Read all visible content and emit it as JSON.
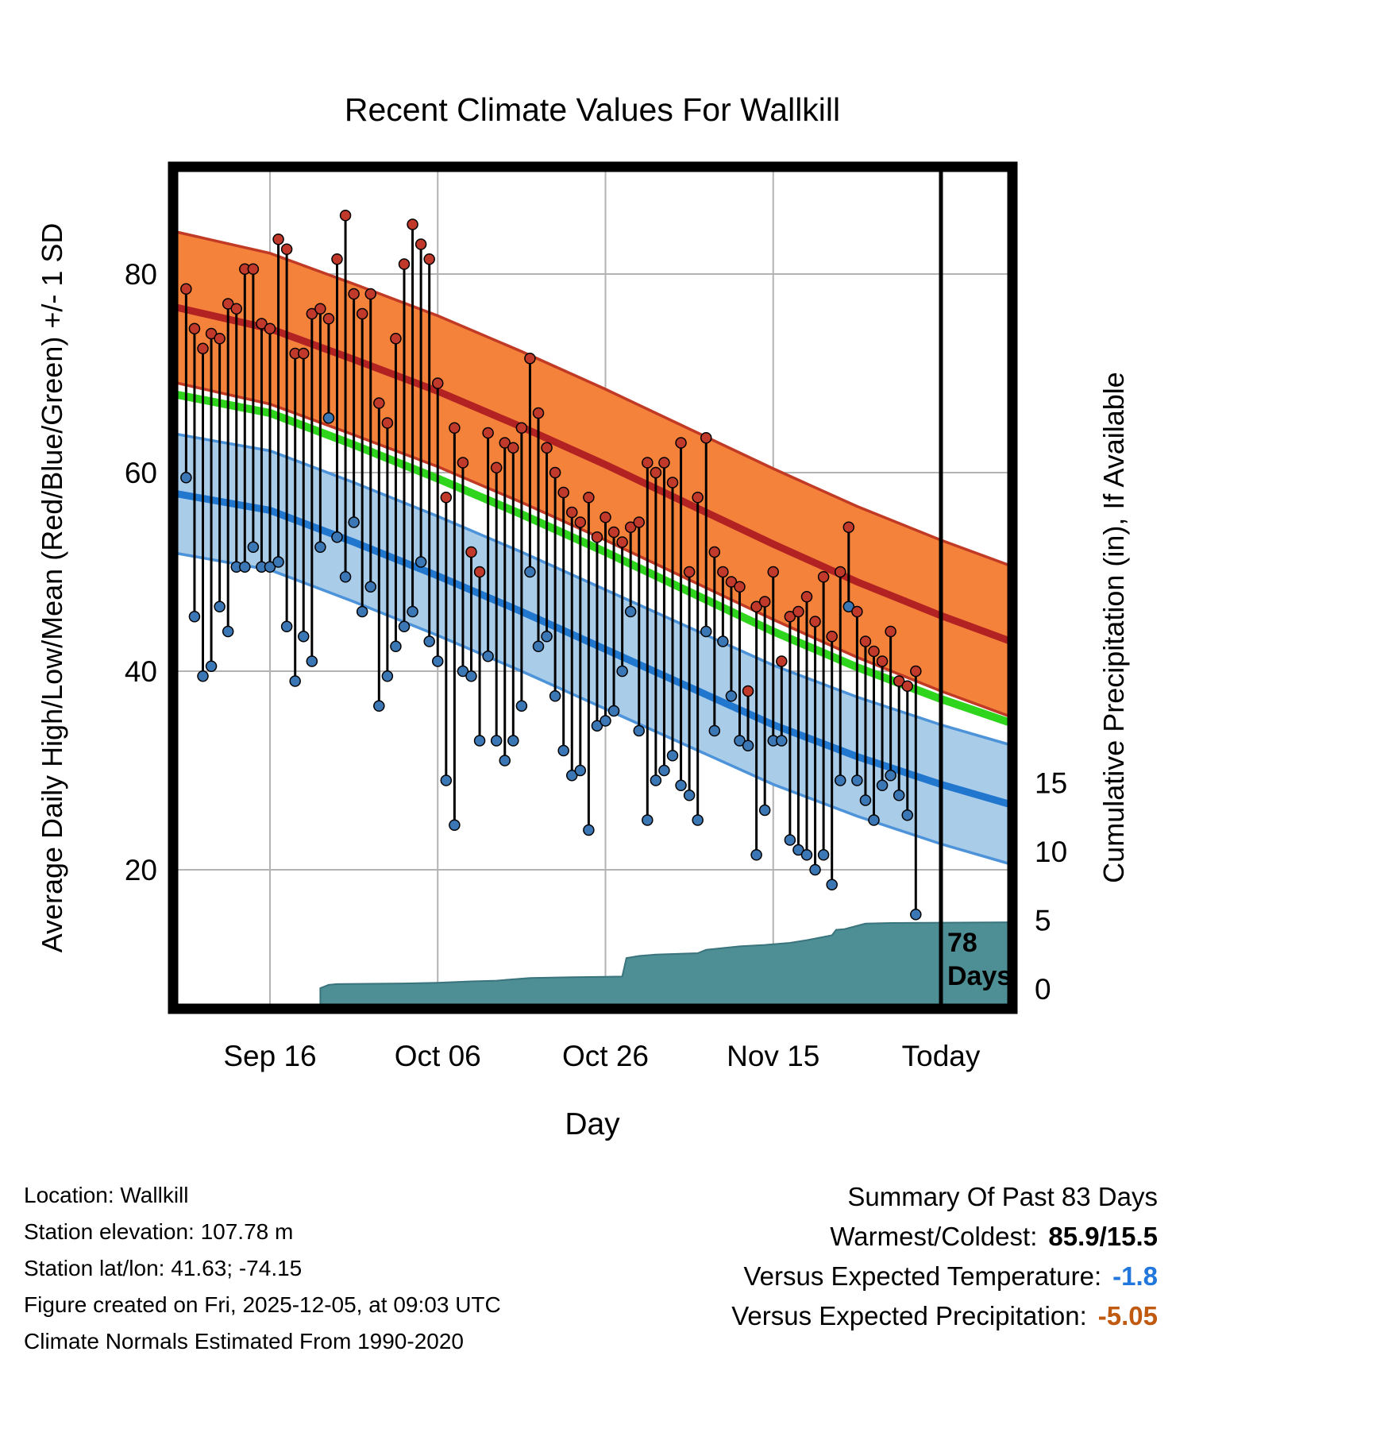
{
  "footer": {
    "location": "Location: Wallkill",
    "elevation": "Station elevation: 107.78 m",
    "latlon": "Station lat/lon: 41.63; -74.15",
    "created": "Figure created on Fri, 2025-12-05, at 09:03 UTC",
    "normals_note": "Climate Normals Estimated From 1990-2020"
  },
  "summary": {
    "title": "Summary Of Past 83 Days",
    "warmest_label": "Warmest/Coldest:",
    "warmest_value": "85.9/15.5",
    "warmest_color": "#000000",
    "vs_temp_label": "Versus Expected Temperature:",
    "vs_temp_value": "-1.8",
    "vs_temp_color": "#2277DD",
    "vs_precip_label": "Versus Expected Precipitation:",
    "vs_precip_value": "-5.05",
    "vs_precip_color": "#C05A11"
  },
  "chart_data": {
    "type": "line",
    "title": "Recent Climate Values For Wallkill",
    "xlabel": "Day",
    "ylabel_left": "Average Daily High/Low/Mean (Red/Blue/Green) +/- 1 SD",
    "ylabel_right": "Cumulative Precipitation (in), If Available",
    "x_ticks": [
      {
        "day": 3,
        "label": "Sep 16"
      },
      {
        "day": 23,
        "label": "Oct 06"
      },
      {
        "day": 43,
        "label": "Oct 26"
      },
      {
        "day": 63,
        "label": "Nov 15"
      },
      {
        "day": 83,
        "label": "Today"
      }
    ],
    "day_axis": {
      "range": [
        -8.5,
        91.5
      ]
    },
    "temp_axis": {
      "ticks": [
        20,
        40,
        60,
        80
      ],
      "range": [
        6,
        90.8
      ]
    },
    "precip_axis": {
      "ticks": [
        0,
        5,
        10,
        15
      ]
    },
    "normals": {
      "days": [
        -9,
        3,
        13,
        23,
        33,
        43,
        53,
        63,
        73,
        83,
        92
      ],
      "high_mean": [
        76.8,
        74.5,
        71.4,
        68.2,
        64.6,
        60.8,
        56.8,
        52.8,
        49.0,
        45.6,
        42.8
      ],
      "high_sd": 7.6,
      "low_mean": [
        58.0,
        56.2,
        53.0,
        49.6,
        46.0,
        42.2,
        38.4,
        34.6,
        31.4,
        28.6,
        26.4
      ],
      "low_sd": 6.0,
      "mean": [
        68.0,
        66.0,
        62.8,
        59.4,
        55.8,
        52.0,
        48.0,
        44.0,
        40.4,
        37.2,
        34.6
      ]
    },
    "daily": {
      "start_day": -7,
      "high": [
        78.5,
        74.5,
        72.5,
        74,
        73.5,
        77,
        76.5,
        80.5,
        80.5,
        75,
        74.5,
        83.5,
        82.5,
        72,
        72,
        76,
        76.5,
        75.5,
        81.5,
        85.9,
        78,
        76,
        78,
        67,
        65,
        73.5,
        81,
        85,
        83,
        81.5,
        69,
        57.5,
        64.5,
        61,
        52,
        50,
        64,
        60.5,
        63,
        62.5,
        64.5,
        71.5,
        66,
        62.5,
        60,
        58,
        56,
        55,
        57.5,
        53.5,
        55.5,
        54,
        53,
        54.5,
        55,
        61,
        60,
        61,
        59,
        63,
        50,
        57.5,
        63.5,
        52,
        50,
        49,
        48.5,
        38,
        46.5,
        47,
        50,
        41,
        45.5,
        46,
        47.5,
        45,
        49.5,
        43.5,
        50,
        54.5,
        46,
        43,
        42,
        41,
        44,
        39,
        38.5,
        40
      ],
      "low": [
        59.5,
        45.5,
        39.5,
        40.5,
        46.5,
        44,
        50.5,
        50.5,
        52.5,
        50.5,
        50.5,
        51,
        44.5,
        39,
        43.5,
        41,
        52.5,
        65.5,
        53.5,
        49.5,
        55,
        46,
        48.5,
        36.5,
        39.5,
        42.5,
        44.5,
        46,
        51,
        43,
        41,
        29,
        24.5,
        40,
        39.5,
        33,
        41.5,
        33,
        31,
        33,
        36.5,
        50,
        42.5,
        43.5,
        37.5,
        32,
        29.5,
        30,
        24,
        34.5,
        35,
        36,
        40,
        46,
        34,
        25,
        29,
        30,
        31.5,
        28.5,
        27.5,
        25,
        44,
        34,
        43,
        37.5,
        33,
        32.5,
        21.5,
        26,
        33,
        33,
        23,
        22,
        21.5,
        20,
        21.5,
        18.5,
        29,
        46.5,
        29,
        27,
        25,
        28.5,
        29.5,
        27.5,
        25.5,
        15.5
      ]
    },
    "precip_cumulative": {
      "days": [
        -8.5,
        9,
        10,
        11,
        19,
        23,
        27,
        30,
        34,
        39,
        45,
        45.5,
        47,
        49,
        54,
        55,
        59,
        62,
        65,
        67,
        70,
        70.5,
        71.5,
        74,
        77,
        91.5
      ],
      "values": [
        0,
        0.05,
        0.3,
        0.35,
        0.4,
        0.45,
        0.55,
        0.6,
        0.8,
        0.85,
        0.9,
        2.25,
        2.4,
        2.5,
        2.6,
        2.85,
        3.1,
        3.2,
        3.35,
        3.55,
        3.9,
        4.3,
        4.35,
        4.75,
        4.8,
        4.85
      ]
    },
    "today": {
      "day": 83,
      "label_line1": "78",
      "label_line2": "Days"
    },
    "colors": {
      "grid": "#B3B3B3",
      "high_band": "#F5823B",
      "high_edge": "#C03A25",
      "high_line": "#B22222",
      "low_band": "#A9CCE9",
      "low_edge": "#4D93D9",
      "low_line": "#2176CE",
      "mean_line": "#2FD41C",
      "high_dot": "#C0392B",
      "low_dot": "#3B77B5",
      "daily_line": "#000000",
      "precip_fill": "#4E8F96",
      "precip_edge": "#3A747C",
      "today_line": "#000000"
    }
  }
}
